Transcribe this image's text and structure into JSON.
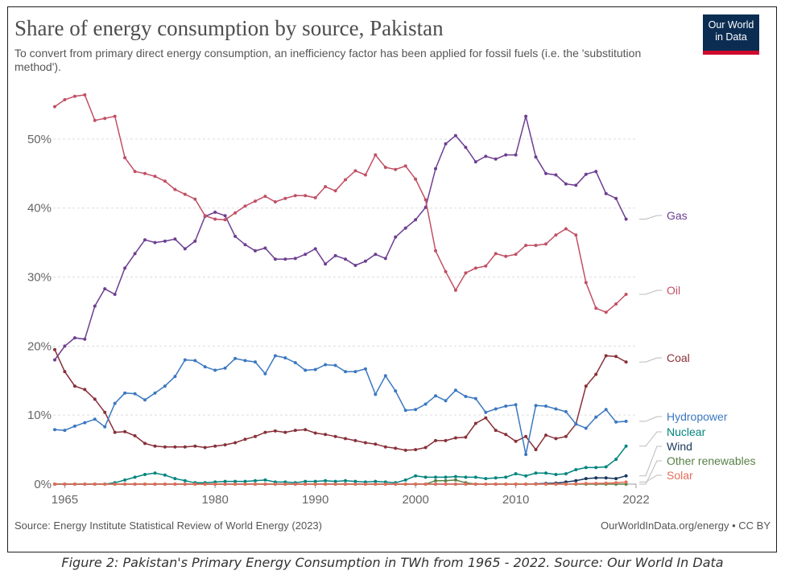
{
  "title": "Share of energy consumption by source, Pakistan",
  "subtitle": "To convert from primary direct energy consumption, an inefficiency factor has been applied for fossil fuels (i.e. the 'substitution method').",
  "logo": {
    "line1": "Our World",
    "line2": "in Data"
  },
  "source": "Source: Energy Institute Statistical Review of World Energy (2023)",
  "license": "OurWorldInData.org/energy • CC BY",
  "caption": "Figure 2: Pakistan's Primary Energy Consumption in TWh from 1965 - 2022. Source: Our World In Data",
  "colors": {
    "gas": "#6d3e91",
    "oil": "#c15065",
    "coal": "#883039",
    "hydropower": "#3b78c0",
    "nuclear": "#00847e",
    "wind": "#18375b",
    "other": "#578145",
    "solar": "#e56e5a",
    "grid": "#dddddd",
    "axis": "#999999"
  },
  "chart_data": {
    "type": "line",
    "title": "Share of energy consumption by source, Pakistan",
    "xlabel": "",
    "ylabel": "",
    "xlim": [
      1964,
      2022
    ],
    "ylim": [
      0,
      55
    ],
    "x_ticks": [
      1965,
      1980,
      1990,
      2000,
      2010,
      2022
    ],
    "y_ticks": [
      0,
      10,
      20,
      30,
      40,
      50
    ],
    "y_tick_labels": [
      "0%",
      "10%",
      "20%",
      "30%",
      "40%",
      "50%"
    ],
    "x_start": 1964,
    "series": [
      {
        "key": "gas",
        "name": "Gas",
        "values": [
          18,
          20,
          21.2,
          21,
          25.8,
          28.3,
          27.5,
          31.3,
          33.4,
          35.4,
          35,
          35.2,
          35.5,
          34.1,
          35.2,
          38.8,
          39.4,
          38.9,
          35.9,
          34.7,
          33.8,
          34.2,
          32.6,
          32.6,
          32.7,
          33.3,
          34.1,
          31.9,
          33.1,
          32.6,
          31.7,
          32.3,
          33.3,
          32.7,
          35.8,
          37.1,
          38.3,
          40.1,
          45.7,
          49.3,
          50.5,
          48.8,
          46.7,
          47.5,
          47.1,
          47.7,
          47.7,
          53.3,
          47.4,
          45,
          44.8,
          43.5,
          43.3,
          44.9,
          45.3,
          42.1,
          41.4,
          38.4
        ]
      },
      {
        "key": "oil",
        "name": "Oil",
        "values": [
          54.7,
          55.7,
          56.2,
          56.4,
          52.7,
          53,
          53.3,
          47.3,
          45.3,
          45,
          44.6,
          43.9,
          42.7,
          42,
          41.3,
          38.9,
          38.4,
          38.3,
          39.3,
          40.3,
          41,
          41.7,
          40.9,
          41.4,
          41.8,
          41.8,
          41.5,
          43.1,
          42.5,
          44.1,
          45.4,
          44.8,
          47.7,
          45.9,
          45.6,
          46.1,
          44.2,
          41.2,
          33.8,
          30.8,
          28.1,
          30.6,
          31.3,
          31.6,
          33.4,
          33,
          33.3,
          34.6,
          34.6,
          34.8,
          36.1,
          37,
          36.1,
          29.2,
          25.5,
          24.9,
          26.1,
          27.5
        ]
      },
      {
        "key": "coal",
        "name": "Coal",
        "values": [
          19.5,
          16.3,
          14.2,
          13.7,
          12.3,
          10.4,
          7.5,
          7.6,
          7,
          5.9,
          5.5,
          5.4,
          5.4,
          5.4,
          5.5,
          5.3,
          5.5,
          5.7,
          6,
          6.5,
          6.9,
          7.5,
          7.7,
          7.5,
          7.8,
          7.9,
          7.4,
          7.2,
          6.9,
          6.6,
          6.3,
          6,
          5.8,
          5.4,
          5.2,
          4.9,
          5,
          5.3,
          6.3,
          6.3,
          6.7,
          6.8,
          8.8,
          9.6,
          7.8,
          7.2,
          6.2,
          6.9,
          5,
          7.1,
          6.6,
          6.9,
          8.7,
          14.2,
          15.9,
          18.6,
          18.5,
          17.7
        ]
      },
      {
        "key": "hydropower",
        "name": "Hydropower",
        "values": [
          7.9,
          7.8,
          8.4,
          8.9,
          9.4,
          8.3,
          11.7,
          13.2,
          13.1,
          12.2,
          13.2,
          14.2,
          15.6,
          18,
          17.9,
          17,
          16.5,
          16.8,
          18.2,
          17.9,
          17.7,
          16,
          18.6,
          18.3,
          17.6,
          16.5,
          16.6,
          17.3,
          17.2,
          16.3,
          16.3,
          16.7,
          13,
          15.7,
          13.5,
          10.7,
          10.8,
          11.6,
          12.8,
          12.1,
          13.6,
          12.7,
          12.4,
          10.4,
          10.9,
          11.3,
          11.5,
          4.3,
          11.4,
          11.3,
          10.9,
          10.5,
          8.7,
          8.1,
          9.7,
          10.8,
          9,
          9.1
        ]
      },
      {
        "key": "nuclear",
        "name": "Nuclear",
        "values": [
          0,
          0,
          0,
          0,
          0,
          0,
          0.2,
          0.6,
          1,
          1.4,
          1.6,
          1.3,
          0.8,
          0.5,
          0.2,
          0.2,
          0.3,
          0.4,
          0.4,
          0.4,
          0.5,
          0.6,
          0.3,
          0.3,
          0.2,
          0.4,
          0.4,
          0.5,
          0.4,
          0.5,
          0.4,
          0.3,
          0.4,
          0.3,
          0.2,
          0.6,
          1.2,
          1,
          1,
          1,
          1.1,
          1,
          1,
          0.8,
          0.9,
          1,
          1.5,
          1.2,
          1.6,
          1.6,
          1.4,
          1.5,
          2.1,
          2.4,
          2.4,
          2.5,
          3.6,
          5.5
        ]
      },
      {
        "key": "wind",
        "name": "Wind",
        "values": [
          0,
          0,
          0,
          0,
          0,
          0,
          0,
          0,
          0,
          0,
          0,
          0,
          0,
          0,
          0,
          0,
          0,
          0,
          0,
          0,
          0,
          0,
          0,
          0,
          0,
          0,
          0,
          0,
          0,
          0,
          0,
          0,
          0,
          0,
          0,
          0,
          0,
          0,
          0,
          0,
          0,
          0,
          0,
          0,
          0,
          0,
          0,
          0,
          0.05,
          0.1,
          0.15,
          0.3,
          0.5,
          0.8,
          0.9,
          0.9,
          0.8,
          1.2
        ]
      },
      {
        "key": "other",
        "name": "Other renewables",
        "values": [
          0,
          0,
          0,
          0,
          0,
          0,
          0,
          0,
          0,
          0,
          0,
          0,
          0,
          0,
          0,
          0,
          0,
          0,
          0,
          0,
          0,
          0,
          0,
          0,
          0,
          0,
          0,
          0,
          0,
          0,
          0,
          0,
          0,
          0,
          0,
          0,
          0,
          0,
          0.5,
          0.5,
          0.6,
          0.2,
          0,
          0,
          0,
          0,
          0,
          0,
          0,
          0,
          0,
          0,
          0,
          0,
          0,
          0,
          0,
          0
        ]
      },
      {
        "key": "solar",
        "name": "Solar",
        "values": [
          0,
          0,
          0,
          0,
          0,
          0,
          0,
          0,
          0,
          0,
          0,
          0,
          0,
          0,
          0,
          0,
          0,
          0,
          0,
          0,
          0,
          0,
          0,
          0,
          0,
          0,
          0,
          0,
          0,
          0,
          0,
          0,
          0,
          0,
          0,
          0,
          0,
          0,
          0,
          0,
          0,
          0,
          0,
          0,
          0,
          0,
          0,
          0,
          0,
          0,
          0,
          0,
          0.05,
          0.1,
          0.1,
          0.15,
          0.2,
          0.3
        ]
      }
    ],
    "legend": [
      {
        "key": "gas",
        "name": "Gas"
      },
      {
        "key": "oil",
        "name": "Oil"
      },
      {
        "key": "coal",
        "name": "Coal"
      },
      {
        "key": "hydropower",
        "name": "Hydropower"
      },
      {
        "key": "nuclear",
        "name": "Nuclear"
      },
      {
        "key": "wind",
        "name": "Wind"
      },
      {
        "key": "other",
        "name": "Other renewables"
      },
      {
        "key": "solar",
        "name": "Solar"
      }
    ]
  }
}
